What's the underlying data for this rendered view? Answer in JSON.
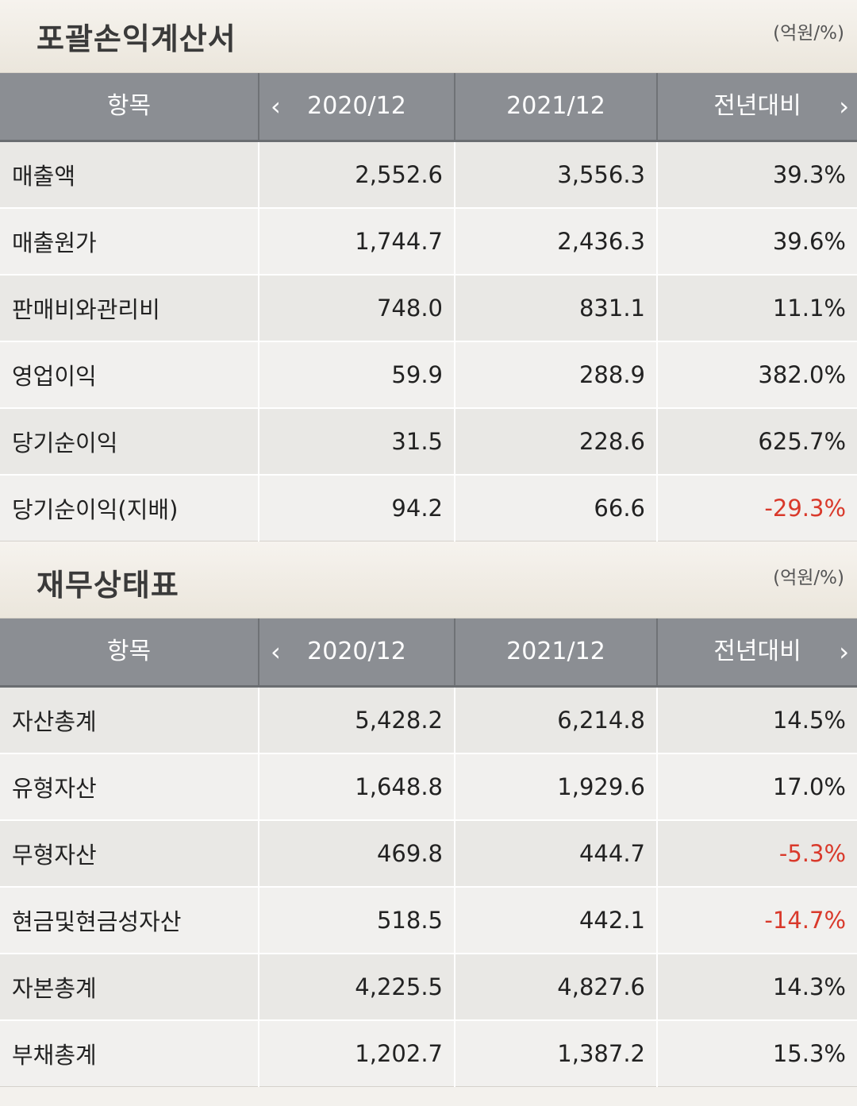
{
  "income_statement": {
    "title": "포괄손익계산서",
    "unit": "(억원/%)",
    "headers": {
      "item": "항목",
      "prev_icon": "chevron-left-icon",
      "col1": "2020/12",
      "col2": "2021/12",
      "col3": "전년대비",
      "next_icon": "chevron-right-icon"
    },
    "rows": [
      {
        "label": "매출액",
        "v2020": "2,552.6",
        "v2021": "3,556.3",
        "yoy": "39.3%"
      },
      {
        "label": "매출원가",
        "v2020": "1,744.7",
        "v2021": "2,436.3",
        "yoy": "39.6%"
      },
      {
        "label": "판매비와관리비",
        "v2020": "748.0",
        "v2021": "831.1",
        "yoy": "11.1%"
      },
      {
        "label": "영업이익",
        "v2020": "59.9",
        "v2021": "288.9",
        "yoy": "382.0%"
      },
      {
        "label": "당기순이익",
        "v2020": "31.5",
        "v2021": "228.6",
        "yoy": "625.7%"
      },
      {
        "label": "당기순이익(지배)",
        "v2020": "94.2",
        "v2021": "66.6",
        "yoy": "-29.3%"
      }
    ]
  },
  "balance_sheet": {
    "title": "재무상태표",
    "unit": "(억원/%)",
    "headers": {
      "item": "항목",
      "prev_icon": "chevron-left-icon",
      "col1": "2020/12",
      "col2": "2021/12",
      "col3": "전년대비",
      "next_icon": "chevron-right-icon"
    },
    "rows": [
      {
        "label": "자산총계",
        "v2020": "5,428.2",
        "v2021": "6,214.8",
        "yoy": "14.5%"
      },
      {
        "label": "유형자산",
        "v2020": "1,648.8",
        "v2021": "1,929.6",
        "yoy": "17.0%"
      },
      {
        "label": "무형자산",
        "v2020": "469.8",
        "v2021": "444.7",
        "yoy": "-5.3%"
      },
      {
        "label": "현금및현금성자산",
        "v2020": "518.5",
        "v2021": "442.1",
        "yoy": "-14.7%"
      },
      {
        "label": "자본총계",
        "v2020": "4,225.5",
        "v2021": "4,827.6",
        "yoy": "14.3%"
      },
      {
        "label": "부채총계",
        "v2020": "1,202.7",
        "v2021": "1,387.2",
        "yoy": "15.3%"
      }
    ]
  },
  "colors": {
    "negative": "#d9392b",
    "header_bg": "#8b8e93"
  }
}
